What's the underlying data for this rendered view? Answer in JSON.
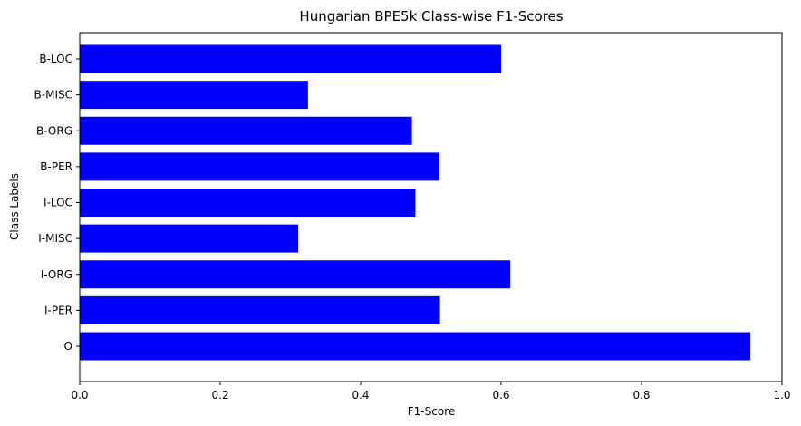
{
  "chart_data": {
    "type": "bar",
    "orientation": "horizontal",
    "title": "Hungarian BPE5k Class-wise F1-Scores",
    "xlabel": "F1-Score",
    "ylabel": "Class Labels",
    "xlim": [
      0,
      1.0
    ],
    "x_ticks": [
      "0.0",
      "0.2",
      "0.4",
      "0.6",
      "0.8",
      "1.0"
    ],
    "categories": [
      "B-LOC",
      "B-MISC",
      "B-ORG",
      "B-PER",
      "I-LOC",
      "I-MISC",
      "I-ORG",
      "I-PER",
      "O"
    ],
    "values": [
      0.6,
      0.325,
      0.473,
      0.512,
      0.478,
      0.311,
      0.613,
      0.513,
      0.955
    ],
    "bar_color": "#0000ff",
    "grid": false,
    "legend": "none"
  }
}
